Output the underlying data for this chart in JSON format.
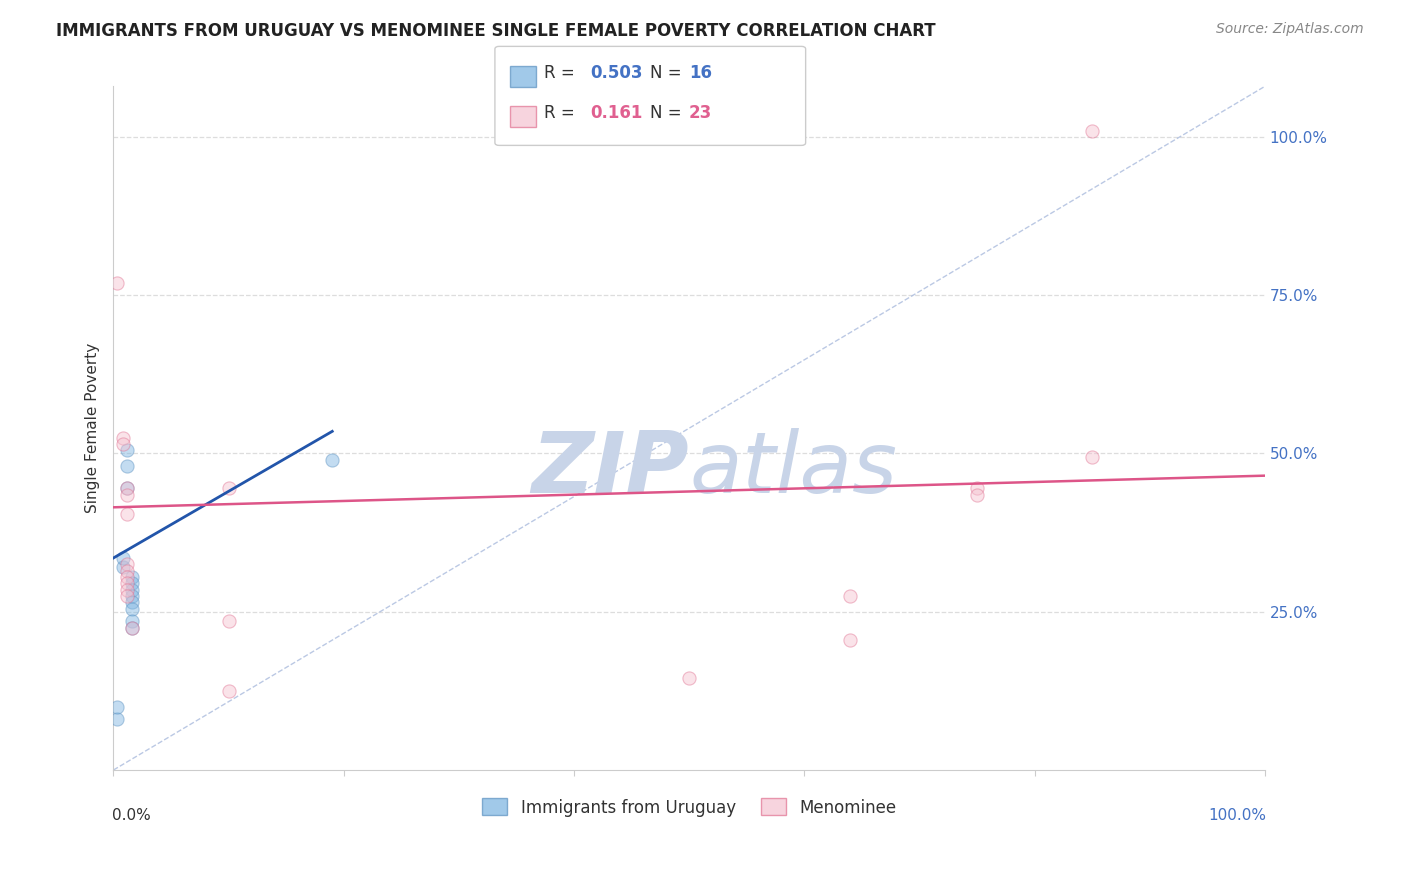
{
  "title": "IMMIGRANTS FROM URUGUAY VS MENOMINEE SINGLE FEMALE POVERTY CORRELATION CHART",
  "source": "Source: ZipAtlas.com",
  "ylabel": "Single Female Poverty",
  "ytick_labels": [
    "100.0%",
    "75.0%",
    "50.0%",
    "25.0%"
  ],
  "ytick_values": [
    1.0,
    0.75,
    0.5,
    0.25
  ],
  "xtick_labels": [
    "0.0%",
    "",
    "",
    "",
    "",
    "100.0%"
  ],
  "xtick_values": [
    0.0,
    0.2,
    0.4,
    0.6,
    0.8,
    1.0
  ],
  "xlim": [
    0.0,
    1.0
  ],
  "ylim": [
    0.0,
    1.08
  ],
  "blue_points": [
    [
      0.003,
      0.08
    ],
    [
      0.008,
      0.32
    ],
    [
      0.008,
      0.335
    ],
    [
      0.012,
      0.505
    ],
    [
      0.012,
      0.48
    ],
    [
      0.012,
      0.445
    ],
    [
      0.016,
      0.305
    ],
    [
      0.016,
      0.295
    ],
    [
      0.016,
      0.285
    ],
    [
      0.016,
      0.275
    ],
    [
      0.016,
      0.265
    ],
    [
      0.016,
      0.255
    ],
    [
      0.016,
      0.235
    ],
    [
      0.016,
      0.225
    ],
    [
      0.19,
      0.49
    ],
    [
      0.003,
      0.1
    ]
  ],
  "pink_points": [
    [
      0.003,
      0.77
    ],
    [
      0.008,
      0.525
    ],
    [
      0.008,
      0.515
    ],
    [
      0.012,
      0.445
    ],
    [
      0.012,
      0.435
    ],
    [
      0.012,
      0.325
    ],
    [
      0.012,
      0.315
    ],
    [
      0.012,
      0.305
    ],
    [
      0.012,
      0.295
    ],
    [
      0.012,
      0.285
    ],
    [
      0.012,
      0.275
    ],
    [
      0.016,
      0.225
    ],
    [
      0.1,
      0.445
    ],
    [
      0.1,
      0.235
    ],
    [
      0.1,
      0.125
    ],
    [
      0.5,
      0.145
    ],
    [
      0.64,
      0.275
    ],
    [
      0.64,
      0.205
    ],
    [
      0.75,
      0.445
    ],
    [
      0.75,
      0.435
    ],
    [
      0.85,
      0.495
    ],
    [
      0.85,
      1.01
    ],
    [
      0.012,
      0.405
    ]
  ],
  "blue_line": {
    "x0": 0.0,
    "y0": 0.335,
    "x1": 0.19,
    "y1": 0.535
  },
  "pink_line": {
    "x0": 0.0,
    "y0": 0.415,
    "x1": 1.0,
    "y1": 0.465
  },
  "diagonal_line": {
    "x0": 0.0,
    "y0": 0.0,
    "x1": 1.0,
    "y1": 1.08
  },
  "bg_color": "#ffffff",
  "grid_color": "#dddddd",
  "title_color": "#222222",
  "point_size": 90,
  "point_alpha": 0.45,
  "blue_color": "#7ab3e0",
  "blue_edge_color": "#5a90c0",
  "pink_face_color": "#f4c2d0",
  "pink_edge_color": "#e07090",
  "blue_line_color": "#2255aa",
  "pink_line_color": "#dd5588",
  "diag_line_color": "#aabbdd",
  "legend1_R": "0.503",
  "legend1_N": "16",
  "legend1_label": "Immigrants from Uruguay",
  "legend2_R": "0.161",
  "legend2_N": "23",
  "legend2_label": "Menominee",
  "R_color_blue": "#4472c4",
  "R_color_pink": "#e06090",
  "N_color_blue": "#4472c4",
  "N_color_pink": "#e06090",
  "watermark_color": "#c8d4e8"
}
